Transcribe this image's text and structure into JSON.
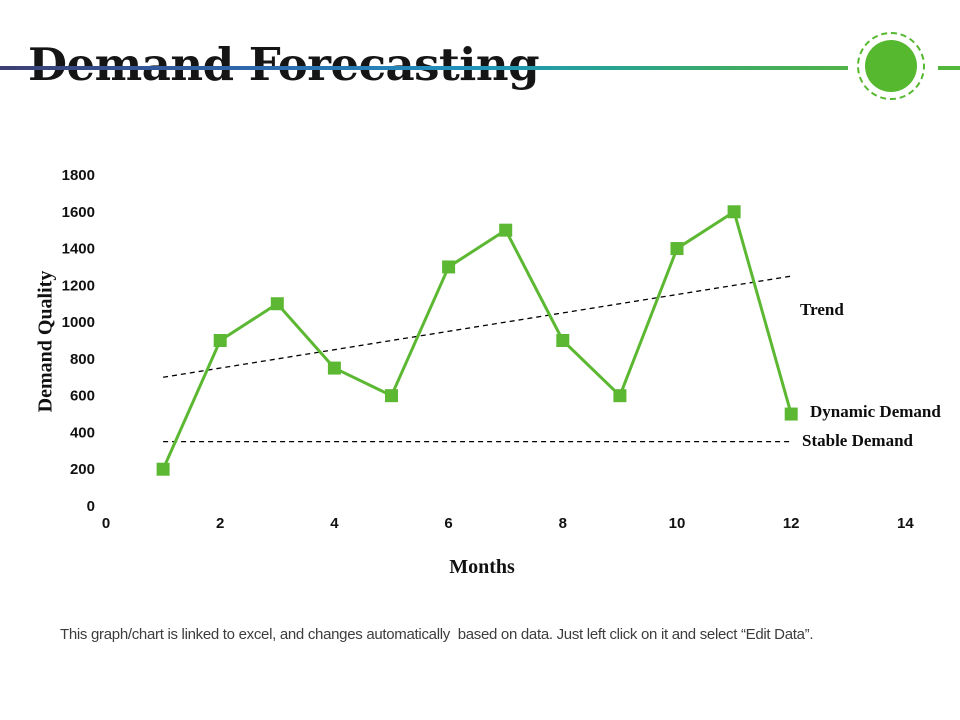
{
  "slide": {
    "title": "Demand Forecasting",
    "footer_note": "This graph/chart is linked to excel, and changes automatically  based on data. Just left click on it and select “Edit Data”."
  },
  "decor": {
    "circle_color": "#55b82f",
    "divider_gradient": [
      "#3d3f71",
      "#2d6cae",
      "#2193be",
      "#27a391",
      "#52b348"
    ]
  },
  "chart_data": {
    "type": "line",
    "xlabel": "Months",
    "ylabel": "Demand Quality",
    "xlim": [
      0,
      14
    ],
    "ylim": [
      0,
      1800
    ],
    "x_ticks": [
      0,
      2,
      4,
      6,
      8,
      10,
      12,
      14
    ],
    "y_ticks": [
      0,
      200,
      400,
      600,
      800,
      1000,
      1200,
      1400,
      1600,
      1800
    ],
    "grid": false,
    "axis_lines": false,
    "series": [
      {
        "name": "Dynamic Demand",
        "type": "line-markers",
        "color": "#5cb832",
        "marker": "square",
        "x": [
          1,
          2,
          3,
          4,
          5,
          6,
          7,
          8,
          9,
          10,
          11,
          12
        ],
        "values": [
          200,
          900,
          1100,
          750,
          600,
          1300,
          1500,
          900,
          600,
          1400,
          1600,
          500
        ]
      },
      {
        "name": "Trend",
        "type": "dashed-line",
        "color": "#000000",
        "x": [
          1,
          12
        ],
        "values": [
          700,
          1250
        ]
      },
      {
        "name": "Stable Demand",
        "type": "dashed-line",
        "color": "#000000",
        "x": [
          1,
          12
        ],
        "values": [
          350,
          350
        ]
      }
    ],
    "annotations": [
      {
        "text": "Trend"
      },
      {
        "text": "Dynamic Demand"
      },
      {
        "text": "Stable Demand"
      }
    ]
  }
}
